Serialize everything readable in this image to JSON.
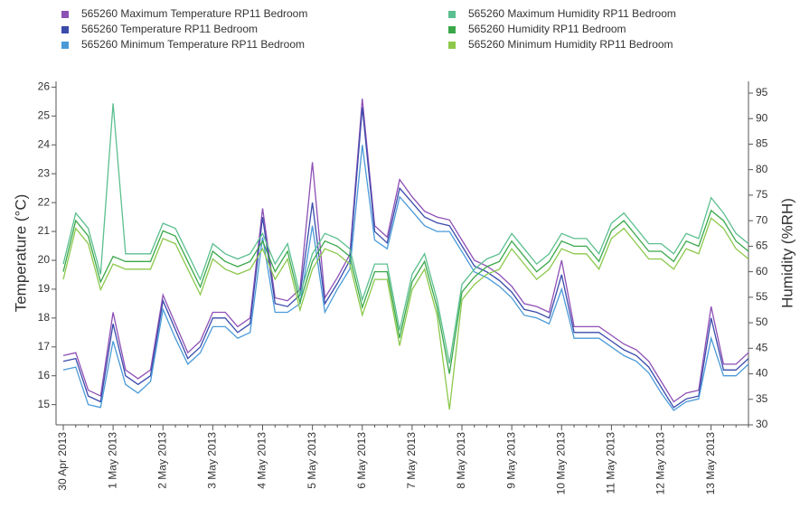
{
  "chart_data": {
    "type": "line",
    "y_label": "Temperature (°C)",
    "y2_label": "Humidity (%RH)",
    "categories": [
      "30 Apr 2013",
      null,
      null,
      null,
      "1 May 2013",
      null,
      null,
      null,
      "2 May 2013",
      null,
      null,
      null,
      "3 May 2013",
      null,
      null,
      null,
      "4 May 2013",
      null,
      null,
      null,
      "5 May 2013",
      null,
      null,
      null,
      "6 May 2013",
      null,
      null,
      null,
      "7 May 2013",
      null,
      null,
      null,
      "8 May 2013",
      null,
      null,
      null,
      "9 May 2013",
      null,
      null,
      null,
      "10 May 2013",
      null,
      null,
      null,
      "11 May 2013",
      null,
      null,
      null,
      "12 May 2013",
      null,
      null,
      null,
      "13 May 2013",
      null,
      null,
      null
    ],
    "ylim": [
      14.3,
      26.2
    ],
    "yticks": [
      15,
      16,
      17,
      18,
      19,
      20,
      21,
      22,
      23,
      24,
      25,
      26
    ],
    "y2lim": [
      30,
      97.3
    ],
    "y2ticks": [
      30,
      35,
      40,
      45,
      50,
      55,
      60,
      65,
      70,
      75,
      80,
      85,
      90,
      95
    ],
    "series": [
      {
        "name": "565260  Maximum Temperature RP11 Bedroom",
        "color": "#8e4fb5",
        "values": [
          16.7,
          16.8,
          15.5,
          15.3,
          18.2,
          16.2,
          15.9,
          16.2,
          18.8,
          17.8,
          16.8,
          17.2,
          18.2,
          18.2,
          17.7,
          18.0,
          21.8,
          18.7,
          18.6,
          19.0,
          23.4,
          18.7,
          19.4,
          20.2,
          25.6,
          21.2,
          20.8,
          22.8,
          22.2,
          21.7,
          21.5,
          21.4,
          20.7,
          20.0,
          19.8,
          19.5,
          19.1,
          18.5,
          18.4,
          18.2,
          20.0,
          17.7,
          17.7,
          17.7,
          17.4,
          17.1,
          16.9,
          16.5,
          15.8,
          15.1,
          15.4,
          15.5,
          18.4,
          16.4,
          16.4,
          16.8
        ]
      },
      {
        "name": "565260  Temperature RP11 Bedroom",
        "color": "#3a4bab",
        "values": [
          16.5,
          16.6,
          15.3,
          15.1,
          17.8,
          16.0,
          15.7,
          16.0,
          18.6,
          17.6,
          16.6,
          17.0,
          18.0,
          18.0,
          17.5,
          17.8,
          21.5,
          18.5,
          18.4,
          18.8,
          22.0,
          18.5,
          19.2,
          20.0,
          25.3,
          21.0,
          20.6,
          22.5,
          22.0,
          21.5,
          21.3,
          21.2,
          20.5,
          19.8,
          19.6,
          19.3,
          18.9,
          18.3,
          18.2,
          18.0,
          19.5,
          17.5,
          17.5,
          17.5,
          17.2,
          16.9,
          16.7,
          16.3,
          15.6,
          14.9,
          15.2,
          15.3,
          18.0,
          16.2,
          16.2,
          16.6
        ]
      },
      {
        "name": "565260  Minimum Temperature RP11 Bedroom",
        "color": "#4a9ad8",
        "values": [
          16.2,
          16.3,
          15.0,
          14.9,
          17.2,
          15.7,
          15.4,
          15.8,
          18.3,
          17.3,
          16.4,
          16.8,
          17.7,
          17.7,
          17.3,
          17.5,
          20.8,
          18.2,
          18.2,
          18.5,
          21.2,
          18.2,
          19.0,
          19.7,
          24.0,
          20.7,
          20.4,
          22.2,
          21.7,
          21.2,
          21.0,
          21.0,
          20.3,
          19.6,
          19.4,
          19.1,
          18.7,
          18.1,
          18.0,
          17.8,
          19.0,
          17.3,
          17.3,
          17.3,
          17.0,
          16.7,
          16.5,
          16.1,
          15.4,
          14.8,
          15.1,
          15.2,
          17.3,
          16.0,
          16.0,
          16.4
        ]
      },
      {
        "name": "565260  Maximum Humidity RP11 Bedroom",
        "color": "#5bbf8f",
        "axis": "y2",
        "values": [
          61.5,
          71.5,
          68.5,
          59.5,
          93,
          63.5,
          63.5,
          63.5,
          69.5,
          68.5,
          63.5,
          58.5,
          65.5,
          63.5,
          62.5,
          63.5,
          67.5,
          61.5,
          65.5,
          55.5,
          63.5,
          67.5,
          66.5,
          64.5,
          54.5,
          61.5,
          61.5,
          48.5,
          59.5,
          63.5,
          54.5,
          42,
          57.5,
          60.5,
          62.5,
          63.5,
          67.5,
          64.5,
          61.5,
          63.5,
          67.5,
          66.5,
          66.5,
          63.5,
          69.5,
          71.5,
          68.5,
          65.5,
          65.5,
          63.5,
          67.5,
          66.5,
          74.5,
          71.5,
          67.5,
          65.5
        ]
      },
      {
        "name": "565260  Humidity RP11 Bedroom",
        "color": "#3aa84a",
        "axis": "y2",
        "values": [
          60,
          70,
          67,
          58,
          63,
          62,
          62,
          62,
          68,
          67,
          62,
          57,
          64,
          62,
          61,
          62,
          66,
          60,
          64,
          54,
          62,
          66,
          65,
          63,
          53,
          60,
          60,
          47,
          58,
          62,
          53,
          40,
          56,
          59,
          61,
          62,
          66,
          63,
          60,
          62,
          66,
          65,
          65,
          62,
          68,
          70,
          67,
          64,
          64,
          62,
          66,
          65,
          72,
          70,
          66,
          64
        ]
      },
      {
        "name": "565260  Minimum Humidity RP11 Bedroom",
        "color": "#8cc84b",
        "axis": "y2",
        "values": [
          58.5,
          68.5,
          65.5,
          56.5,
          61.5,
          60.5,
          60.5,
          60.5,
          66.5,
          65.5,
          60.5,
          55.5,
          62.5,
          60.5,
          59.5,
          60.5,
          64.5,
          58.5,
          62.5,
          52.5,
          60.5,
          64.5,
          63.5,
          61.5,
          51.5,
          58.5,
          58.5,
          45.5,
          56.5,
          60.5,
          51.5,
          33,
          54.5,
          57.5,
          59.5,
          60.5,
          64.5,
          61.5,
          58.5,
          60.5,
          64.5,
          63.5,
          63.5,
          60.5,
          66.5,
          68.5,
          65.5,
          62.5,
          62.5,
          60.5,
          64.5,
          63.5,
          70.5,
          68.5,
          64.5,
          62.5
        ]
      }
    ]
  }
}
